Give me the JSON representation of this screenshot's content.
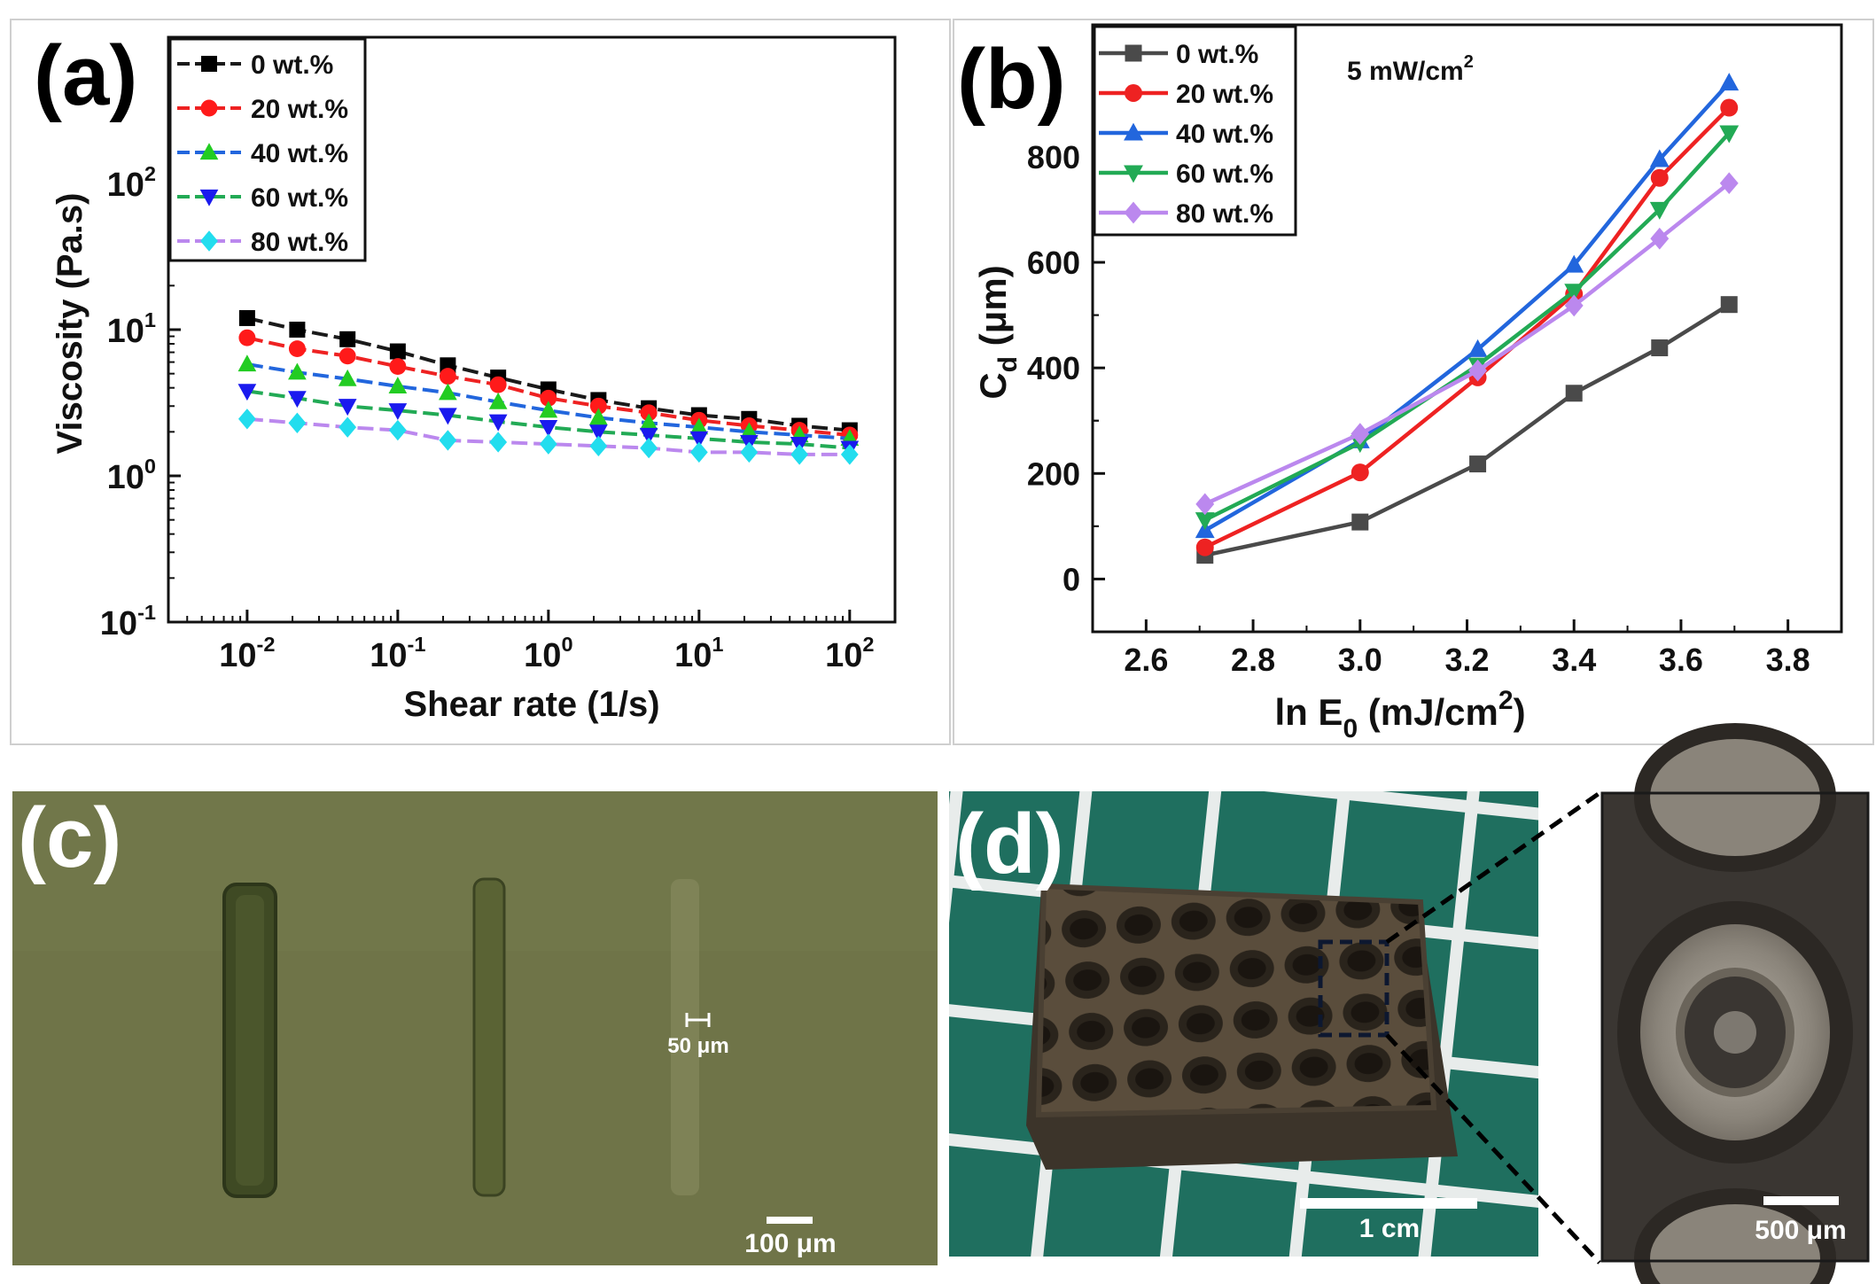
{
  "colors": {
    "0": "#1a1a1a",
    "20": "#ee2222",
    "40": "#2266dd",
    "60": "#22aa55",
    "80": "#bb88ee",
    "a_markers": [
      "#000000",
      "#ff1a1a",
      "#22cc22",
      "#1a1aee",
      "#22ddee"
    ],
    "b_markers": [
      "#4a4a4a",
      "#ee2222",
      "#2266dd",
      "#22aa55",
      "#bb88ee"
    ],
    "b_lines": [
      "#4a4a4a",
      "#ee2222",
      "#2266dd",
      "#22aa55",
      "#bb88ee"
    ]
  },
  "chart_data": [
    {
      "panel": "(a)",
      "type": "line",
      "xscale": "log",
      "yscale": "log",
      "xlabel": "Shear rate (1/s)",
      "ylabel": "Viscosity (Pa.s)",
      "xlim": [
        0.003,
        200
      ],
      "ylim": [
        0.1,
        1000
      ],
      "xtick_labels": [
        [
          "10",
          "-2"
        ],
        [
          "10",
          "-1"
        ],
        [
          "10",
          "0"
        ],
        [
          "10",
          "1"
        ],
        [
          "10",
          "2"
        ]
      ],
      "ytick_labels": [
        [
          "10",
          "-1"
        ],
        [
          "10",
          "0"
        ],
        [
          "10",
          "1"
        ],
        [
          "10",
          "2"
        ]
      ],
      "x": [
        0.01,
        0.0215,
        0.0464,
        0.1,
        0.215,
        0.464,
        1,
        2.15,
        4.64,
        10,
        21.5,
        46.4,
        100
      ],
      "series": [
        {
          "name": "0 wt.%",
          "marker": "square",
          "values": [
            12,
            10,
            8.6,
            7.1,
            5.7,
            4.7,
            3.9,
            3.3,
            2.9,
            2.6,
            2.45,
            2.2,
            2.05
          ]
        },
        {
          "name": "20 wt.%",
          "marker": "circle",
          "values": [
            8.8,
            7.4,
            6.6,
            5.6,
            4.8,
            4.2,
            3.4,
            3.0,
            2.7,
            2.4,
            2.2,
            2.05,
            1.9
          ]
        },
        {
          "name": "40 wt.%",
          "marker": "triangle",
          "values": [
            5.8,
            5.1,
            4.6,
            4.1,
            3.7,
            3.2,
            2.8,
            2.5,
            2.3,
            2.15,
            2.0,
            1.9,
            1.8
          ]
        },
        {
          "name": "60 wt.%",
          "marker": "tridown",
          "values": [
            3.8,
            3.4,
            3.0,
            2.8,
            2.6,
            2.35,
            2.15,
            2.0,
            1.9,
            1.8,
            1.7,
            1.65,
            1.55
          ]
        },
        {
          "name": "80 wt.%",
          "marker": "diamond",
          "values": [
            2.45,
            2.3,
            2.15,
            2.05,
            1.75,
            1.7,
            1.65,
            1.6,
            1.55,
            1.45,
            1.45,
            1.4,
            1.4
          ]
        }
      ]
    },
    {
      "panel": "(b)",
      "type": "line",
      "annotation": "5 mW/cm",
      "annotation_sup": "2",
      "xlabel_parts": [
        "ln E",
        "0",
        " (mJ/cm",
        "2",
        ")"
      ],
      "ylabel_parts": [
        "C",
        "d",
        " (μm)"
      ],
      "xlim": [
        2.5,
        3.9
      ],
      "ylim": [
        -100,
        1050
      ],
      "xticks": [
        2.6,
        2.8,
        3.0,
        3.2,
        3.4,
        3.6,
        3.8
      ],
      "xtick_labels": [
        "2.6",
        "2.8",
        "3.0",
        "3.2",
        "3.4",
        "3.6",
        "3.8"
      ],
      "yticks": [
        0,
        200,
        400,
        600,
        800
      ],
      "ytick_labels": [
        "0",
        "200",
        "400",
        "600",
        "800"
      ],
      "x": [
        2.71,
        3.0,
        3.22,
        3.4,
        3.56,
        3.69
      ],
      "series": [
        {
          "name": "0 wt.%",
          "marker": "square",
          "values": [
            45,
            108,
            218,
            352,
            438,
            520
          ]
        },
        {
          "name": "20 wt.%",
          "marker": "circle",
          "values": [
            60,
            202,
            382,
            540,
            760,
            893
          ]
        },
        {
          "name": "40 wt.%",
          "marker": "triangle",
          "values": [
            92,
            262,
            435,
            595,
            795,
            940
          ]
        },
        {
          "name": "60 wt.%",
          "marker": "tridown",
          "values": [
            112,
            258,
            405,
            545,
            700,
            845
          ]
        },
        {
          "name": "80 wt.%",
          "marker": "diamond",
          "values": [
            142,
            275,
            395,
            518,
            645,
            750
          ]
        }
      ]
    }
  ],
  "photos": {
    "c": {
      "letter": "(c)",
      "scale_label_1": "50 μm",
      "scale_label_2": "100 μm"
    },
    "d": {
      "letter": "(d)",
      "scale_label_1": "1 cm",
      "scale_label_2": "500 μm"
    }
  }
}
